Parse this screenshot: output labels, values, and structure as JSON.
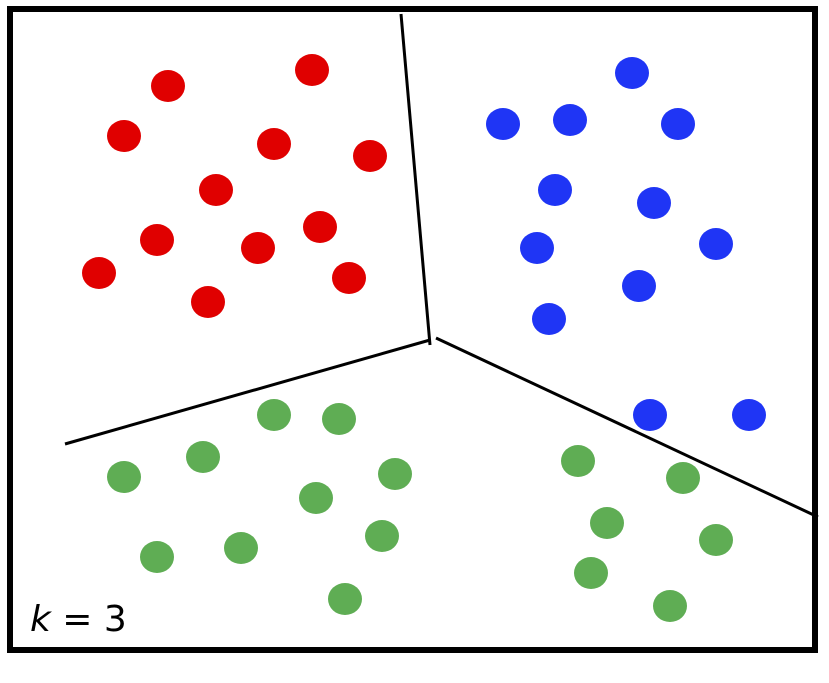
{
  "label": {
    "var": "k",
    "rest": " = 3"
  },
  "colors": {
    "red": "#e00000",
    "blue": "#1f35f5",
    "green": "#5fad54",
    "line": "#000000"
  },
  "clusters": [
    {
      "name": "red",
      "color": "#e00000",
      "points": [
        [
          168,
          86
        ],
        [
          312,
          70
        ],
        [
          124,
          136
        ],
        [
          274,
          144
        ],
        [
          370,
          156
        ],
        [
          216,
          190
        ],
        [
          157,
          240
        ],
        [
          258,
          248
        ],
        [
          320,
          227
        ],
        [
          99,
          273
        ],
        [
          349,
          278
        ],
        [
          208,
          302
        ]
      ]
    },
    {
      "name": "blue",
      "color": "#1f35f5",
      "points": [
        [
          632,
          73
        ],
        [
          503,
          124
        ],
        [
          570,
          120
        ],
        [
          678,
          124
        ],
        [
          555,
          190
        ],
        [
          654,
          203
        ],
        [
          537,
          248
        ],
        [
          716,
          244
        ],
        [
          639,
          286
        ],
        [
          549,
          319
        ],
        [
          650,
          415
        ],
        [
          749,
          415
        ]
      ]
    },
    {
      "name": "green",
      "color": "#5fad54",
      "points": [
        [
          274,
          415
        ],
        [
          339,
          419
        ],
        [
          124,
          477
        ],
        [
          203,
          457
        ],
        [
          395,
          474
        ],
        [
          316,
          498
        ],
        [
          382,
          536
        ],
        [
          157,
          557
        ],
        [
          241,
          548
        ],
        [
          345,
          599
        ],
        [
          578,
          461
        ],
        [
          683,
          478
        ],
        [
          607,
          523
        ],
        [
          716,
          540
        ],
        [
          591,
          573
        ],
        [
          670,
          606
        ]
      ]
    }
  ],
  "boundaries": [
    [
      [
        401,
        14
      ],
      [
        430,
        345
      ]
    ],
    [
      [
        430,
        340
      ],
      [
        65,
        444
      ]
    ],
    [
      [
        436,
        338
      ],
      [
        818,
        517
      ]
    ]
  ]
}
